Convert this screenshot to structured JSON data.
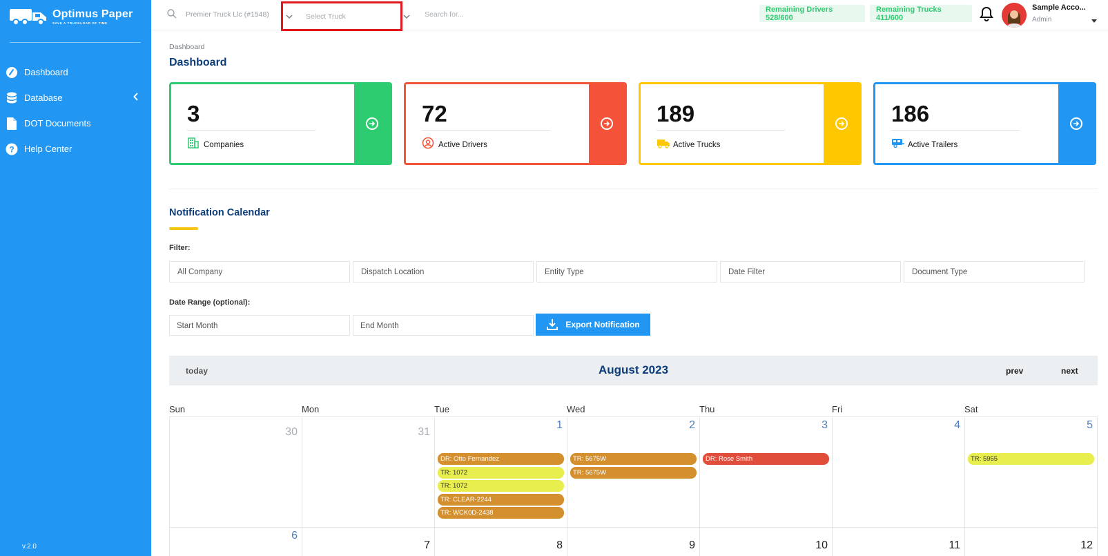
{
  "brand": {
    "name": "Optimus Paper",
    "tagline": "SAVE A TRUCKLOAD OF TIME"
  },
  "sidebar": {
    "items": [
      {
        "label": "Dashboard",
        "icon": "dashboard-icon"
      },
      {
        "label": "Database",
        "icon": "database-icon"
      },
      {
        "label": "DOT Documents",
        "icon": "document-icon"
      },
      {
        "label": "Help Center",
        "icon": "help-icon"
      }
    ],
    "version": "v.2.0"
  },
  "topbar": {
    "company_select": "Premier Truck Llc (#1548)",
    "truck_select_placeholder": "Select Truck",
    "search_placeholder": "Search for...",
    "remaining_drivers": "Remaining Drivers 528/600",
    "remaining_trucks": "Remaining Trucks 411/600",
    "user_name": "Sample Acco...",
    "user_role": "Admin"
  },
  "breadcrumb": "Dashboard",
  "page_title": "Dashboard",
  "stats": [
    {
      "value": "3",
      "label": "Companies",
      "color": "#2ecc71"
    },
    {
      "value": "72",
      "label": "Active Drivers",
      "color": "#f4533a"
    },
    {
      "value": "189",
      "label": "Active Trucks",
      "color": "#ffc700"
    },
    {
      "value": "186",
      "label": "Active Trailers",
      "color": "#2196f3"
    }
  ],
  "calendar_section": {
    "title": "Notification Calendar",
    "filter_label": "Filter:",
    "filters": [
      "All Company",
      "Dispatch Location",
      "Entity Type",
      "Date Filter",
      "Document Type"
    ],
    "date_range_label": "Date Range (optional):",
    "start_month_placeholder": "Start Month",
    "end_month_placeholder": "End Month",
    "export_label": "Export Notification"
  },
  "calendar": {
    "today_label": "today",
    "title": "August 2023",
    "prev_label": "prev",
    "next_label": "next",
    "days_of_week": [
      "Sun",
      "Mon",
      "Tue",
      "Wed",
      "Thu",
      "Fri",
      "Sat"
    ],
    "weeks": [
      [
        {
          "day": "30",
          "other_month": true,
          "events": []
        },
        {
          "day": "31",
          "other_month": true,
          "events": []
        },
        {
          "day": "1",
          "events": [
            {
              "label": "DR: Otto Fernandez",
              "type": "orange"
            },
            {
              "label": "TR: 1072",
              "type": "yellow"
            },
            {
              "label": "TR: 1072",
              "type": "yellow"
            },
            {
              "label": "TR: CLEAR-2244",
              "type": "orange"
            },
            {
              "label": "TR: WCK0D-2438",
              "type": "orange"
            }
          ]
        },
        {
          "day": "2",
          "events": [
            {
              "label": "TR: 5675W",
              "type": "orange"
            },
            {
              "label": "TR: 5675W",
              "type": "orange"
            }
          ]
        },
        {
          "day": "3",
          "events": [
            {
              "label": "DR: Rose Smith",
              "type": "red"
            }
          ]
        },
        {
          "day": "4",
          "events": []
        },
        {
          "day": "5",
          "events": [
            {
              "label": "TR: 5955",
              "type": "yellow"
            }
          ]
        }
      ],
      [
        {
          "day": "6",
          "events": []
        },
        {
          "day": "7",
          "events": []
        },
        {
          "day": "8",
          "events": []
        },
        {
          "day": "9",
          "events": []
        },
        {
          "day": "10",
          "events": []
        },
        {
          "day": "11",
          "events": []
        },
        {
          "day": "12",
          "events": []
        }
      ]
    ]
  }
}
